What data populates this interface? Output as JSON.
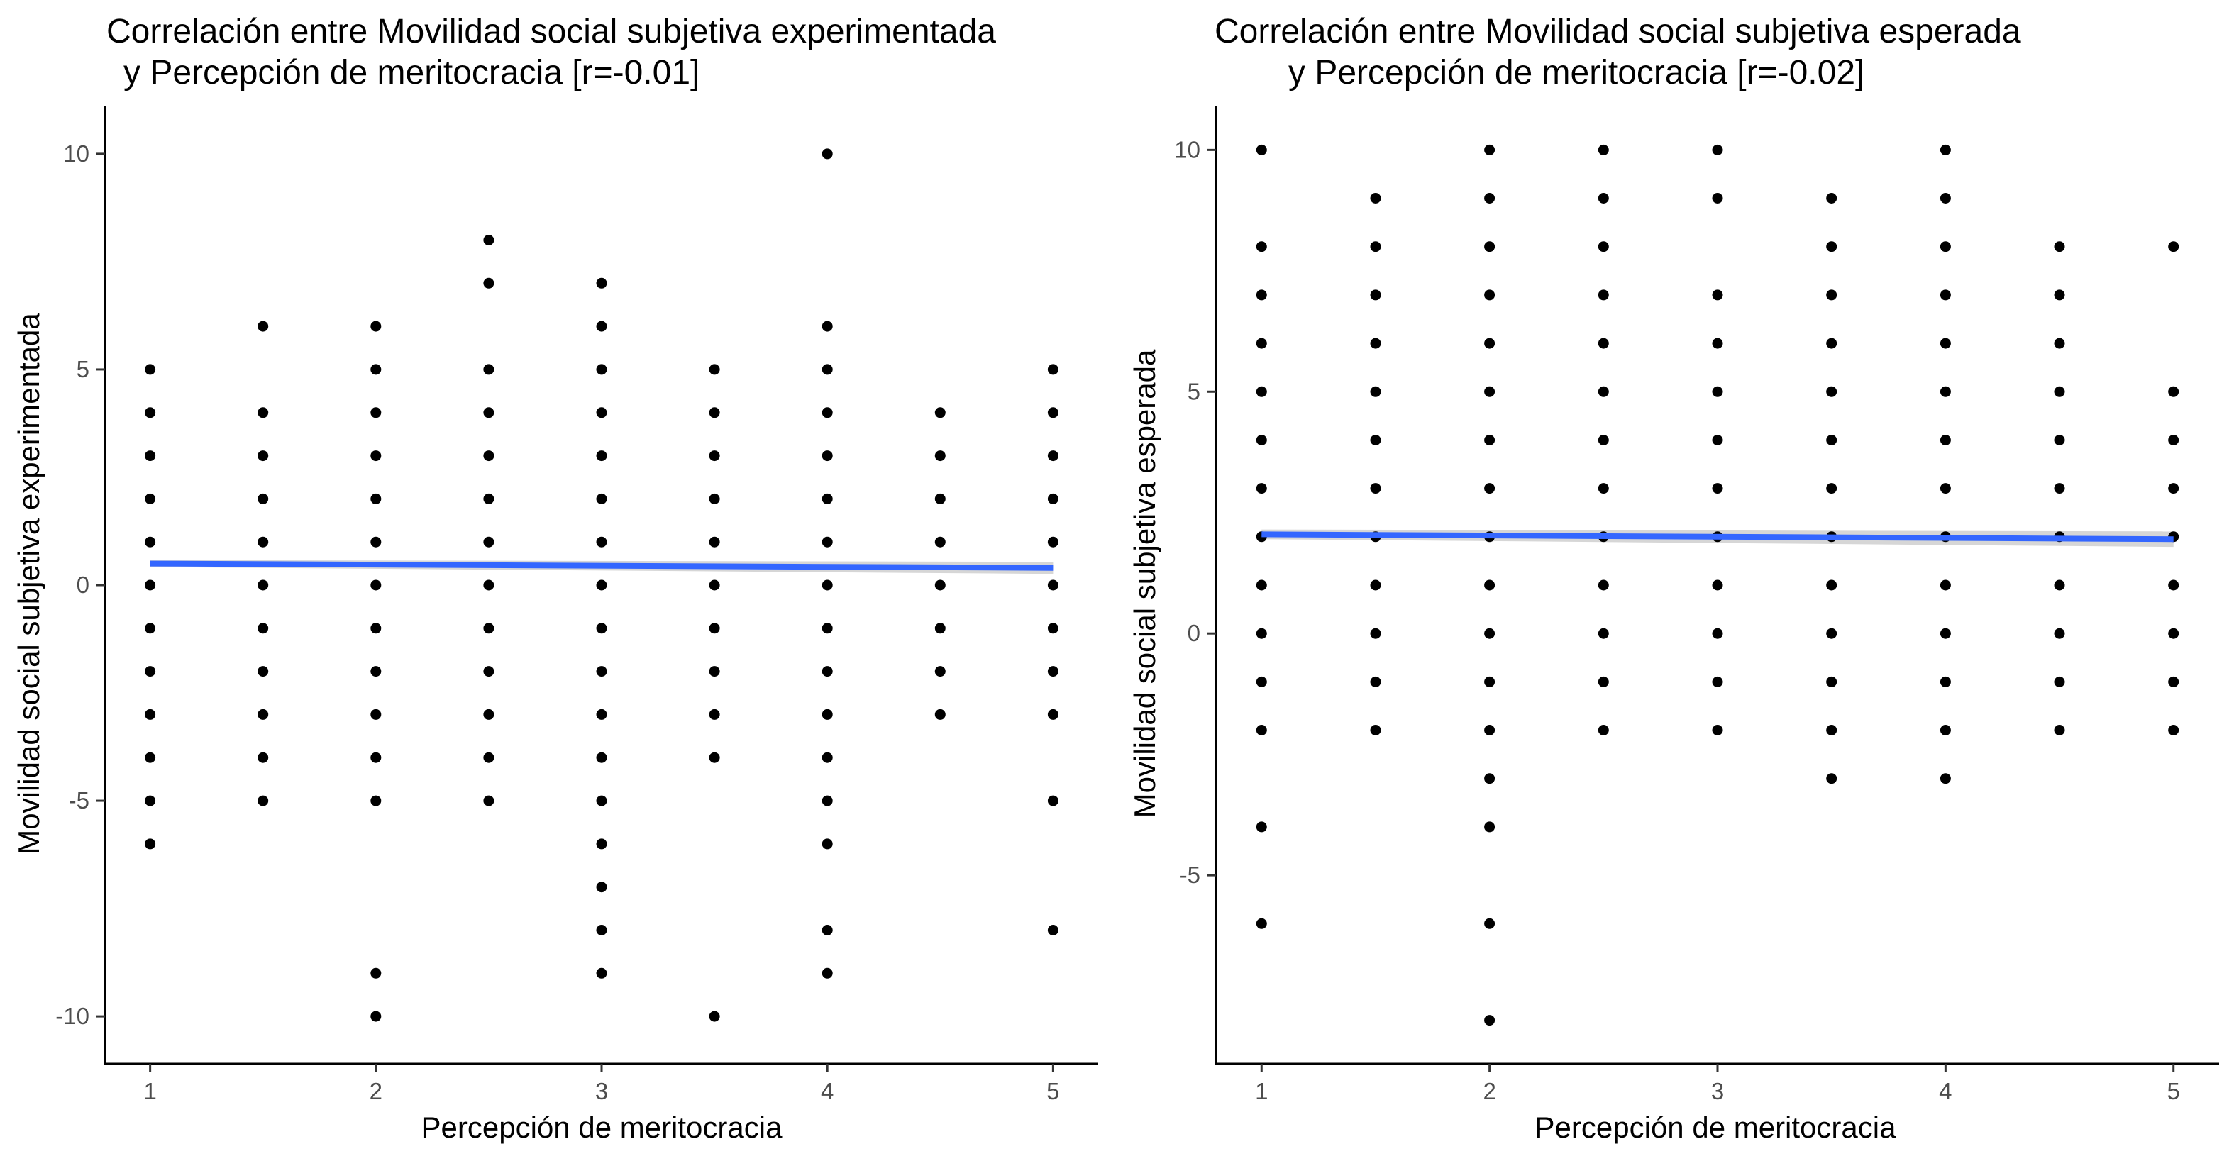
{
  "chart_data": [
    {
      "type": "scatter",
      "title_lines": [
        "Correlación entre Movilidad social subjetiva experimentada",
        "y Percepción de meritocracia [r=-0.01]"
      ],
      "xlabel": "Percepción de meritocracia",
      "ylabel": "Movilidad social subjetiva experimentada",
      "xlim": [
        0.8,
        5.2
      ],
      "ylim": [
        -11.1,
        11.1
      ],
      "x_ticks": [
        1,
        2,
        3,
        4,
        5
      ],
      "y_ticks": [
        -10,
        -5,
        0,
        5,
        10
      ],
      "y_tick_labels": [
        "-10",
        "-5",
        "0",
        "5",
        "10"
      ],
      "grid": false,
      "groups": [
        {
          "x": 1,
          "y": [
            5,
            4,
            3,
            2,
            1,
            0,
            -1,
            -2,
            -3,
            -4,
            -5,
            -6
          ]
        },
        {
          "x": 1.5,
          "y": [
            6,
            4,
            3,
            2,
            1,
            0,
            -1,
            -2,
            -3,
            -4,
            -5
          ]
        },
        {
          "x": 2,
          "y": [
            6,
            5,
            4,
            3,
            2,
            1,
            0,
            -1,
            -2,
            -3,
            -4,
            -5,
            -9,
            -10
          ]
        },
        {
          "x": 2.5,
          "y": [
            8,
            7,
            5,
            4,
            3,
            2,
            1,
            0,
            -1,
            -2,
            -3,
            -4,
            -5
          ]
        },
        {
          "x": 3,
          "y": [
            7,
            6,
            5,
            4,
            3,
            2,
            1,
            0,
            -1,
            -2,
            -3,
            -4,
            -5,
            -6,
            -7,
            -8,
            -9
          ]
        },
        {
          "x": 3.5,
          "y": [
            5,
            4,
            3,
            2,
            1,
            0,
            -1,
            -2,
            -3,
            -4,
            -10
          ]
        },
        {
          "x": 4,
          "y": [
            10,
            6,
            5,
            4,
            3,
            2,
            1,
            0,
            -1,
            -2,
            -3,
            -4,
            -5,
            -6,
            -8,
            -9
          ]
        },
        {
          "x": 4.5,
          "y": [
            4,
            3,
            2,
            1,
            0,
            -1,
            -2,
            -3
          ]
        },
        {
          "x": 5,
          "y": [
            5,
            4,
            3,
            2,
            1,
            0,
            -1,
            -2,
            -3,
            -5,
            -8
          ]
        }
      ],
      "fit_line": {
        "x": [
          1,
          5
        ],
        "y": [
          0.5,
          0.4
        ],
        "ci_halfwidth": [
          0.08,
          0.14
        ]
      }
    },
    {
      "type": "scatter",
      "title_lines": [
        "Correlación entre Movilidad social subjetiva esperada",
        "y Percepción de meritocracia [r=-0.02]"
      ],
      "xlabel": "Percepción de meritocracia",
      "ylabel": "Movilidad social subjetiva esperada",
      "xlim": [
        0.8,
        5.2
      ],
      "ylim": [
        -8.9,
        10.9
      ],
      "x_ticks": [
        1,
        2,
        3,
        4,
        5
      ],
      "y_ticks": [
        -5,
        0,
        5,
        10
      ],
      "y_tick_labels": [
        "-5",
        "0",
        "5",
        "10"
      ],
      "grid": false,
      "groups": [
        {
          "x": 1,
          "y": [
            10,
            8,
            7,
            6,
            5,
            4,
            3,
            2,
            1,
            0,
            -1,
            -2,
            -4,
            -6
          ]
        },
        {
          "x": 1.5,
          "y": [
            9,
            8,
            7,
            6,
            5,
            4,
            3,
            2,
            1,
            0,
            -1,
            -2
          ]
        },
        {
          "x": 2,
          "y": [
            10,
            9,
            8,
            7,
            6,
            5,
            4,
            3,
            2,
            1,
            0,
            -1,
            -2,
            -3,
            -4,
            -6,
            -8
          ]
        },
        {
          "x": 2.5,
          "y": [
            10,
            9,
            8,
            7,
            6,
            5,
            4,
            3,
            2,
            1,
            0,
            -1,
            -2
          ]
        },
        {
          "x": 3,
          "y": [
            10,
            9,
            7,
            6,
            5,
            4,
            3,
            2,
            1,
            0,
            -1,
            -2
          ]
        },
        {
          "x": 3.5,
          "y": [
            9,
            8,
            7,
            6,
            5,
            4,
            3,
            2,
            1,
            0,
            -1,
            -2,
            -3
          ]
        },
        {
          "x": 4,
          "y": [
            10,
            9,
            8,
            7,
            6,
            5,
            4,
            3,
            2,
            1,
            0,
            -1,
            -2,
            -3
          ]
        },
        {
          "x": 4.5,
          "y": [
            8,
            7,
            6,
            5,
            4,
            3,
            2,
            1,
            0,
            -1,
            -2
          ]
        },
        {
          "x": 5,
          "y": [
            8,
            5,
            4,
            3,
            2,
            1,
            0,
            -1,
            -2
          ]
        }
      ],
      "fit_line": {
        "x": [
          1,
          5
        ],
        "y": [
          2.05,
          1.95
        ],
        "ci_halfwidth": [
          0.1,
          0.16
        ]
      }
    }
  ]
}
